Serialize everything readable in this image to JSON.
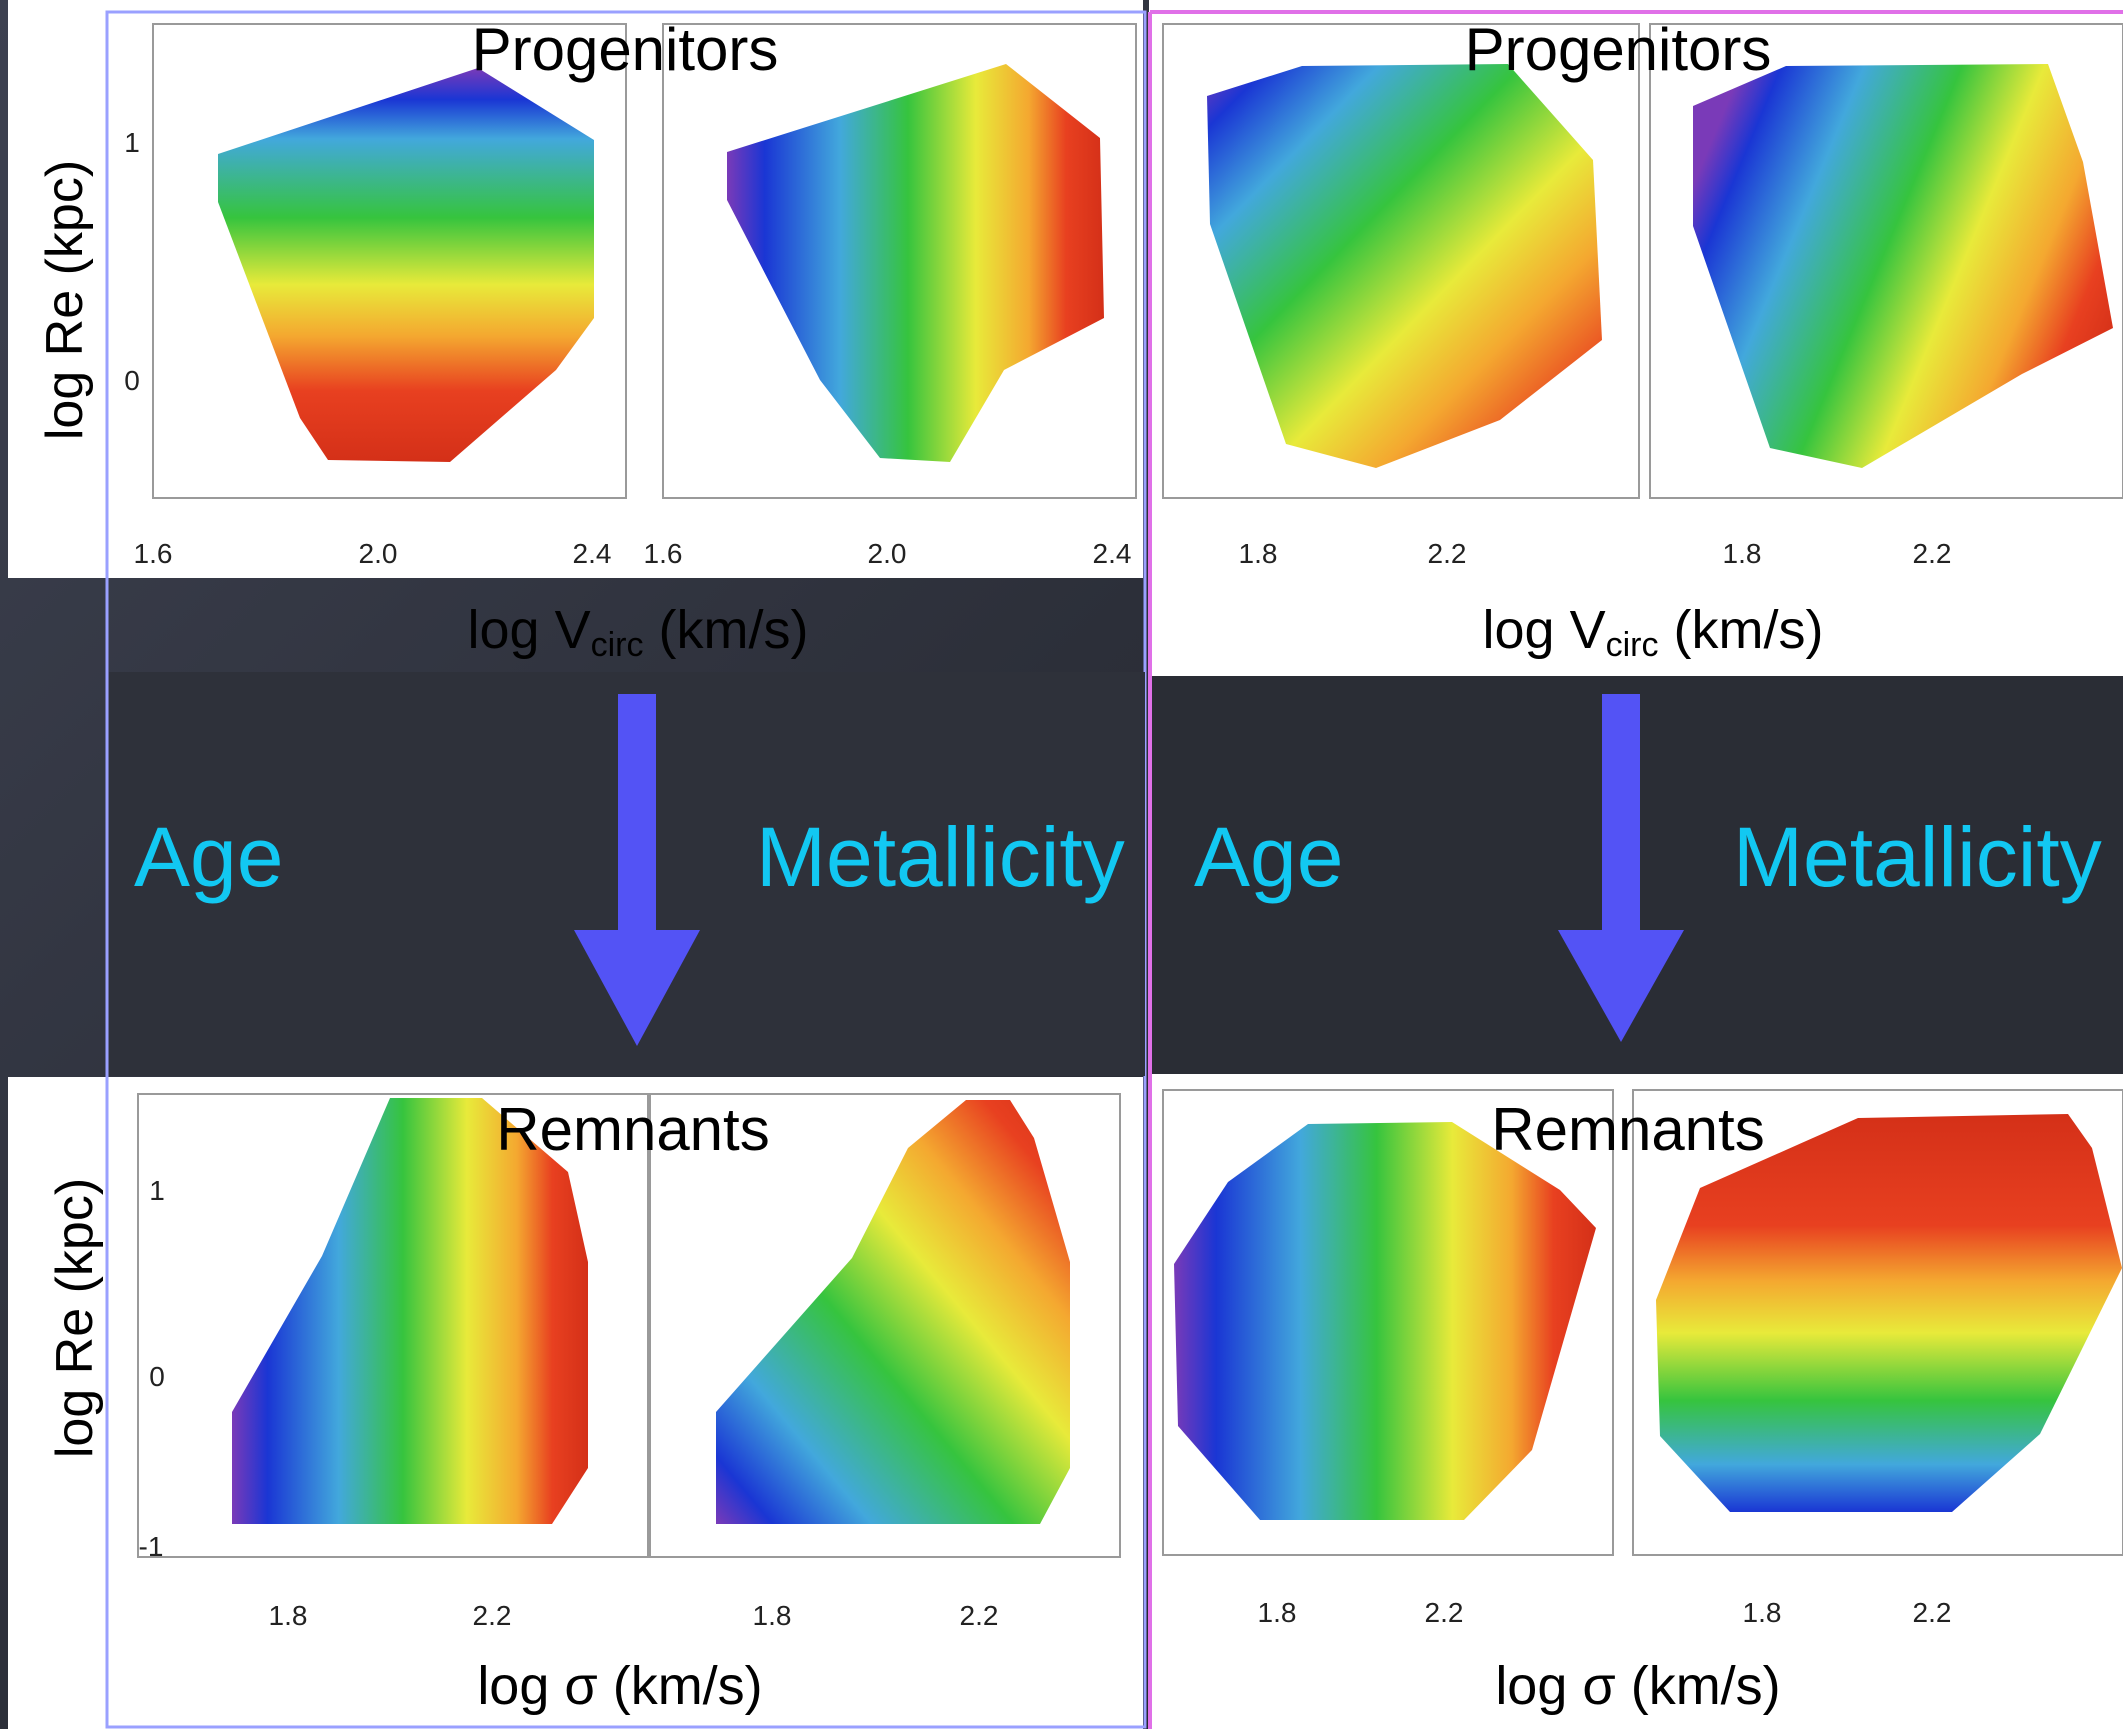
{
  "left_column": {
    "progenitors": {
      "title": "Progenitors",
      "xlabel": "log V",
      "xlabel_sub": "circ",
      "xlabel_units": " (km/s)"
    },
    "remnants": {
      "title": "Remnants",
      "xlabel": "log σ (km/s)"
    },
    "labels": {
      "age": "Age",
      "metallicity": "Metallicity"
    }
  },
  "right_column": {
    "progenitors": {
      "title": "Progenitors",
      "xlabel": "log V",
      "xlabel_sub": "circ",
      "xlabel_units": " (km/s)"
    },
    "remnants": {
      "title": "Remnants",
      "xlabel": "log σ (km/s)"
    },
    "labels": {
      "age": "Age",
      "metallicity": "Metallicity"
    }
  },
  "ylabel_top": "log Re (kpc)",
  "ylabel_bottom": "log Re (kpc)",
  "colors": {
    "age_label": "#12c8f2",
    "arrow": "#5353f5",
    "left_frame": "#9aa0ff",
    "right_frame": "#e070e8",
    "colormap": [
      "#7a3ab8",
      "#1a36d4",
      "#42a8dc",
      "#36c43e",
      "#e8ea3a",
      "#f4a830",
      "#e84020",
      "#d43018"
    ]
  },
  "chart_data": [
    {
      "id": "LP-age",
      "type": "heatmap",
      "title": "Progenitors",
      "quantity": "Age",
      "xlim": [
        1.6,
        2.4
      ],
      "ylim": [
        -0.4,
        1.4
      ],
      "xticks": [
        "1.6",
        "2.0",
        "2.4"
      ],
      "yticks": [
        "0",
        "1"
      ],
      "region": [
        [
          1.72,
          0.92
        ],
        [
          2.2,
          1.3
        ],
        [
          2.38,
          0.98
        ],
        [
          2.38,
          0.27
        ],
        [
          2.23,
          -0.06
        ],
        [
          2.14,
          -0.35
        ],
        [
          1.98,
          -0.34
        ],
        [
          1.85,
          -0.17
        ],
        [
          1.72,
          0.68
        ]
      ],
      "value_at_top_left": 0.0,
      "value_at_bottom": 1.0,
      "gradient_direction": "vertical"
    },
    {
      "id": "LP-met",
      "type": "heatmap",
      "title": "",
      "quantity": "Metallicity",
      "xlim": [
        1.6,
        2.4
      ],
      "ylim": [
        -0.4,
        1.4
      ],
      "xticks": [
        "1.6",
        "2.0",
        "2.4"
      ],
      "yticks": [],
      "region": [
        [
          1.72,
          0.95
        ],
        [
          2.24,
          1.33
        ],
        [
          2.38,
          0.96
        ],
        [
          2.38,
          0.25
        ],
        [
          2.18,
          -0.05
        ],
        [
          2.03,
          -0.35
        ],
        [
          1.94,
          -0.33
        ],
        [
          1.82,
          -0.08
        ],
        [
          1.72,
          0.7
        ]
      ],
      "value_at_left": 0.0,
      "value_at_right": 1.0,
      "gradient_direction": "horizontal"
    },
    {
      "id": "RP-age",
      "type": "heatmap",
      "title": "Progenitors",
      "quantity": "Age",
      "xlim": [
        1.7,
        2.6
      ],
      "ylim": [
        -0.4,
        1.4
      ],
      "xticks": [
        "1.8",
        "2.2"
      ],
      "yticks": [],
      "region": [
        [
          1.71,
          1.18
        ],
        [
          1.88,
          1.3
        ],
        [
          2.22,
          1.3
        ],
        [
          2.34,
          0.87
        ],
        [
          2.35,
          0.3
        ],
        [
          2.2,
          0.12
        ],
        [
          2.05,
          -0.15
        ],
        [
          1.88,
          -0.18
        ],
        [
          1.72,
          0.34
        ]
      ],
      "value_at_top_left": 0.0,
      "value_at_bottom_right": 1.0,
      "gradient_direction": "diagonal"
    },
    {
      "id": "RP-met",
      "type": "heatmap",
      "title": "",
      "quantity": "Metallicity",
      "xlim": [
        1.7,
        2.6
      ],
      "ylim": [
        -0.4,
        1.4
      ],
      "xticks": [
        "1.8",
        "2.2"
      ],
      "yticks": [],
      "region": [
        [
          1.7,
          1.13
        ],
        [
          1.88,
          1.29
        ],
        [
          2.36,
          1.3
        ],
        [
          2.47,
          0.84
        ],
        [
          2.55,
          0.34
        ],
        [
          2.39,
          0.12
        ],
        [
          2.12,
          -0.15
        ],
        [
          1.94,
          -0.18
        ],
        [
          1.72,
          0.32
        ]
      ],
      "value_at_left": 0.0,
      "value_at_right": 1.0,
      "gradient_direction": "diagonal"
    },
    {
      "id": "LR-age",
      "type": "heatmap",
      "title": "Remnants",
      "quantity": "Age",
      "xlim": [
        1.6,
        2.4
      ],
      "ylim": [
        -1.1,
        1.5
      ],
      "xticks": [
        "1.8",
        "2.2"
      ],
      "yticks": [
        "1",
        "0",
        "-1"
      ],
      "region": [
        [
          1.68,
          -0.8
        ],
        [
          1.68,
          -0.47
        ],
        [
          1.86,
          0.32
        ],
        [
          2.0,
          1.16
        ],
        [
          2.13,
          1.16
        ],
        [
          2.24,
          0.82
        ],
        [
          2.3,
          0.58
        ],
        [
          2.3,
          -0.45
        ],
        [
          2.23,
          -0.8
        ]
      ],
      "value_at_left": 0.0,
      "value_at_right": 1.0,
      "gradient_direction": "horizontal"
    },
    {
      "id": "LR-met",
      "type": "heatmap",
      "title": "",
      "quantity": "Metallicity",
      "xlim": [
        1.6,
        2.4
      ],
      "ylim": [
        -1.1,
        1.5
      ],
      "xticks": [
        "1.8",
        "2.2"
      ],
      "yticks": [],
      "region": [
        [
          1.68,
          -0.8
        ],
        [
          1.68,
          -0.47
        ],
        [
          1.94,
          0.35
        ],
        [
          2.08,
          0.98
        ],
        [
          2.2,
          1.16
        ],
        [
          2.26,
          1.1
        ],
        [
          2.35,
          0.58
        ],
        [
          2.35,
          -0.45
        ],
        [
          2.25,
          -0.8
        ]
      ],
      "value_at_bottom_left": 0.0,
      "value_at_top_right": 1.0,
      "gradient_direction": "diagonal"
    },
    {
      "id": "RR-age",
      "type": "heatmap",
      "title": "Remnants",
      "quantity": "Age",
      "xlim": [
        1.7,
        2.6
      ],
      "ylim": [
        -1.1,
        1.5
      ],
      "xticks": [
        "1.8",
        "2.2"
      ],
      "yticks": [],
      "region": [
        [
          1.72,
          0.72
        ],
        [
          1.84,
          1.09
        ],
        [
          1.96,
          1.2
        ],
        [
          2.22,
          1.22
        ],
        [
          2.39,
          0.84
        ],
        [
          2.43,
          0.58
        ],
        [
          2.3,
          -0.53
        ],
        [
          2.14,
          -0.78
        ],
        [
          1.94,
          -0.78
        ],
        [
          1.73,
          -0.35
        ]
      ],
      "value_at_left": 0.0,
      "value_at_right": 1.0,
      "gradient_direction": "horizontal"
    },
    {
      "id": "RR-met",
      "type": "heatmap",
      "title": "",
      "quantity": "Metallicity",
      "xlim": [
        1.7,
        2.6
      ],
      "ylim": [
        -1.1,
        1.5
      ],
      "xticks": [
        "1.8",
        "2.2"
      ],
      "yticks": [],
      "region": [
        [
          1.73,
          0.55
        ],
        [
          1.88,
          1.06
        ],
        [
          2.23,
          1.26
        ],
        [
          2.48,
          1.26
        ],
        [
          2.57,
          0.85
        ],
        [
          2.54,
          0.25
        ],
        [
          2.32,
          -0.3
        ],
        [
          2.17,
          -0.68
        ],
        [
          1.94,
          -0.68
        ],
        [
          1.76,
          -0.38
        ]
      ],
      "value_at_bottom": 0.0,
      "value_at_top": 1.0,
      "gradient_direction": "vertical"
    }
  ]
}
